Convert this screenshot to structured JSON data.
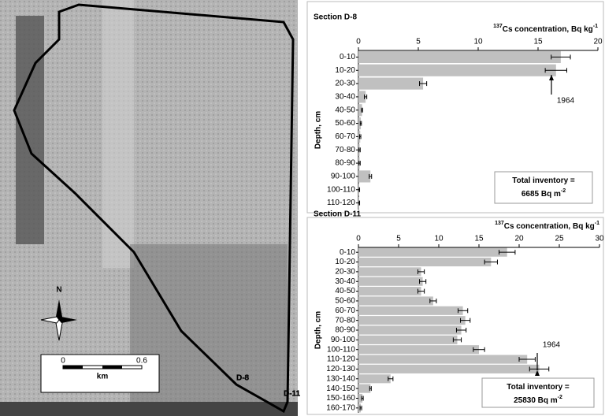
{
  "chart_data": [
    {
      "type": "bar",
      "orientation": "horizontal",
      "title": "Section D-8",
      "xlabel": [
        {
          "text": "137",
          "sup": true
        },
        {
          "text": "Cs concentration, Bq kg"
        },
        {
          "text": "-1",
          "sup": true
        }
      ],
      "ylabel": "Depth, cm",
      "categories": [
        "0-10",
        "10-20",
        "20-30",
        "30-40",
        "40-50",
        "50-60",
        "60-70",
        "70-80",
        "80-90",
        "90-100",
        "100-110",
        "110-120"
      ],
      "values": [
        16.9,
        16.5,
        5.4,
        0.6,
        0.3,
        0.2,
        0.15,
        0.1,
        0.1,
        1.0,
        0.05,
        0.05
      ],
      "errors": [
        0.8,
        0.9,
        0.3,
        0.1,
        0.05,
        0.05,
        0.05,
        0.05,
        0.05,
        0.1,
        0.05,
        0.05
      ],
      "color": "#c0c0c0",
      "error_color": "#000000",
      "xlim": [
        0,
        20
      ],
      "xticks": [
        0,
        5,
        10,
        15,
        20
      ],
      "annotation": "1964",
      "inventory": [
        [
          {
            "text": "Total inventory ="
          }
        ],
        [
          {
            "text": "6685 Bq m"
          },
          {
            "text": "-2",
            "sup": true
          }
        ]
      ]
    },
    {
      "type": "bar",
      "orientation": "horizontal",
      "title": "Section D-11",
      "xlabel": [
        {
          "text": "137",
          "sup": true
        },
        {
          "text": "Cs concentration, Bq kg"
        },
        {
          "text": "-1",
          "sup": true
        }
      ],
      "ylabel": "Depth, cm",
      "categories": [
        "0-10",
        "10-20",
        "20-30",
        "30-40",
        "40-50",
        "50-60",
        "60-70",
        "70-80",
        "80-90",
        "90-100",
        "100-110",
        "110-120",
        "120-130",
        "130-140",
        "140-150",
        "150-160",
        "160-170"
      ],
      "values": [
        18.5,
        16.5,
        7.8,
        8.0,
        7.8,
        9.3,
        13.0,
        13.3,
        12.8,
        12.3,
        15.0,
        21.0,
        22.5,
        4.0,
        1.5,
        0.5,
        0.3
      ],
      "errors": [
        1.0,
        0.8,
        0.4,
        0.4,
        0.4,
        0.4,
        0.6,
        0.6,
        0.6,
        0.5,
        0.7,
        1.0,
        1.2,
        0.3,
        0.1,
        0.1,
        0.1
      ],
      "color": "#c0c0c0",
      "error_color": "#000000",
      "xlim": [
        0,
        30
      ],
      "xticks": [
        0,
        5,
        10,
        15,
        20,
        25,
        30
      ],
      "annotation": "1964",
      "inventory": [
        [
          {
            "text": "Total inventory ="
          }
        ],
        [
          {
            "text": "25830 Bq m"
          },
          {
            "text": "-2",
            "sup": true
          }
        ]
      ]
    }
  ],
  "map": {
    "north": "N",
    "scale_labels": [
      "0",
      "0.6"
    ],
    "scale_unit": "km",
    "sites": [
      "D-8",
      "D-11"
    ]
  }
}
